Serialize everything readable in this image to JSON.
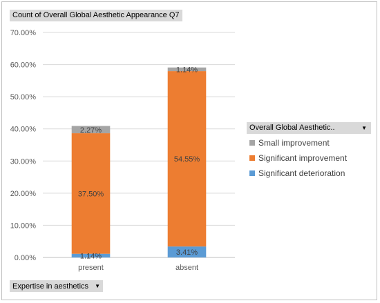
{
  "chart_title_button": {
    "label": "Count of Overall Global Aesthetic Appearance Q7"
  },
  "axis_field_button": {
    "label": "Expertise in aesthetics"
  },
  "legend_field_button": {
    "label": "Overall Global Aesthetic.."
  },
  "chart_data": {
    "type": "bar",
    "stacked": true,
    "title": "",
    "xlabel": "",
    "ylabel": "",
    "categories": [
      "present",
      "absent"
    ],
    "series": [
      {
        "name": "Significant deterioration",
        "values": [
          1.14,
          3.41
        ],
        "labels": [
          "1.14%",
          "3.41%"
        ],
        "color": "#5b9bd5"
      },
      {
        "name": "Significant improvement",
        "values": [
          37.5,
          54.55
        ],
        "labels": [
          "37.50%",
          "54.55%"
        ],
        "color": "#ed7d31"
      },
      {
        "name": "Small improvement",
        "values": [
          2.27,
          1.14
        ],
        "labels": [
          "2.27%",
          "1.14%"
        ],
        "color": "#a5a5a5"
      }
    ],
    "ylim": [
      0,
      70
    ],
    "yticks": [
      0,
      10,
      20,
      30,
      40,
      50,
      60,
      70
    ],
    "ytick_labels": [
      "0.00%",
      "10.00%",
      "20.00%",
      "30.00%",
      "40.00%",
      "50.00%",
      "60.00%",
      "70.00%"
    ],
    "grid": true,
    "legend": {
      "position": "right",
      "entries": [
        "Small improvement",
        "Significant improvement",
        "Significant deterioration"
      ]
    }
  }
}
